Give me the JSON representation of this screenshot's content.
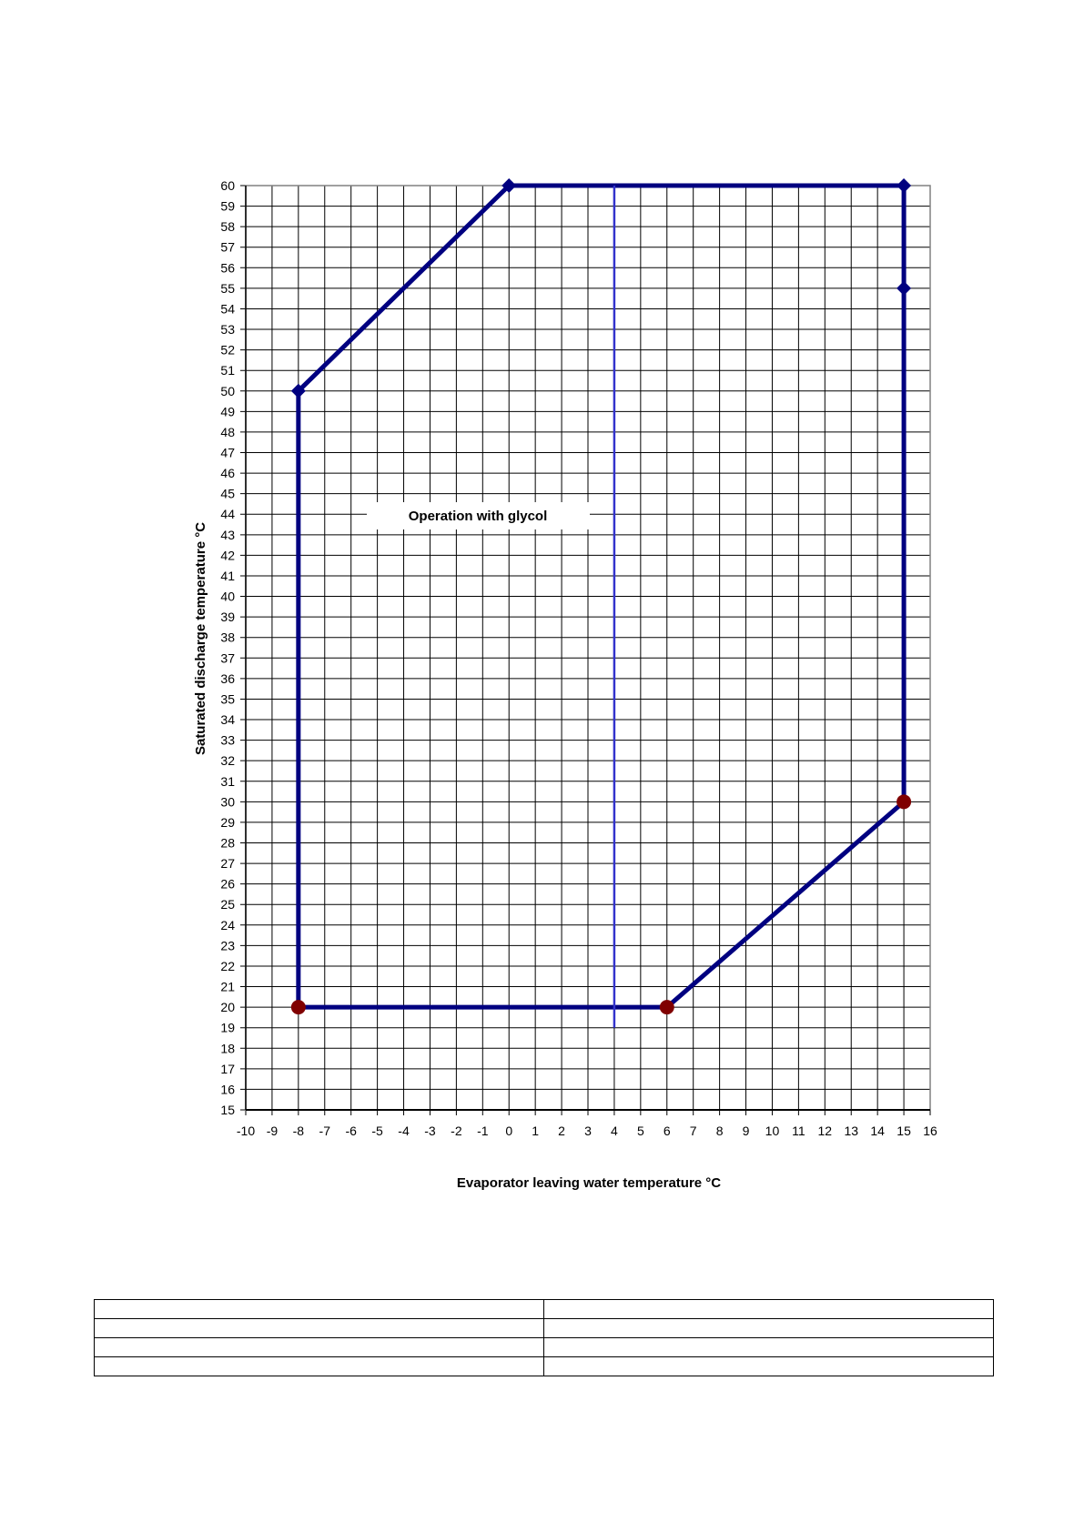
{
  "chart_data": {
    "type": "line",
    "xlabel": "Evaporator leaving water temperature °C",
    "ylabel": "Saturated discharge temperature °C",
    "xlim": [
      -10,
      16
    ],
    "ylim": [
      15,
      60
    ],
    "x_ticks_step": 1,
    "y_ticks_step": 1,
    "grid": true,
    "annotation": "Operation with glycol",
    "series": [
      {
        "points": [
          [
            -8,
            20
          ],
          [
            -8,
            50
          ],
          [
            0,
            60
          ],
          [
            15,
            60
          ],
          [
            15,
            30
          ],
          [
            6,
            20
          ],
          [
            -8,
            20
          ]
        ],
        "color": "#000080"
      },
      {
        "points": [
          [
            4,
            60
          ],
          [
            4,
            19
          ]
        ],
        "color": "#3333cc"
      }
    ],
    "diamond_markers": [
      [
        0,
        60
      ],
      [
        15,
        60
      ],
      [
        15,
        55
      ],
      [
        -8,
        50
      ]
    ],
    "circle_markers": [
      [
        -8,
        20
      ],
      [
        6,
        20
      ],
      [
        15,
        30
      ]
    ],
    "marker_colors": {
      "diamond": "#000080",
      "circle": "#800000"
    }
  },
  "table": {
    "rows": [
      [
        "",
        ""
      ],
      [
        "",
        ""
      ],
      [
        "",
        ""
      ],
      [
        "",
        ""
      ]
    ]
  }
}
